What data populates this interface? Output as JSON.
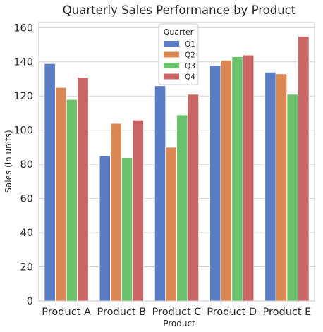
{
  "chart_data": {
    "type": "bar",
    "title": "Quarterly Sales Performance by Product",
    "xlabel": "Product",
    "ylabel": "Sales (in units)",
    "categories": [
      "Product A",
      "Product B",
      "Product C",
      "Product D",
      "Product E"
    ],
    "series": [
      {
        "name": "Q1",
        "color": "#5a7dc6",
        "values": [
          139,
          85,
          126,
          138,
          134
        ]
      },
      {
        "name": "Q2",
        "color": "#dc8854",
        "values": [
          125,
          104,
          90,
          141,
          133
        ]
      },
      {
        "name": "Q3",
        "color": "#6cc16c",
        "values": [
          118,
          84,
          109,
          143,
          121
        ]
      },
      {
        "name": "Q4",
        "color": "#c96565",
        "values": [
          131,
          106,
          121,
          144,
          155
        ]
      }
    ],
    "ylim": [
      0,
      163
    ],
    "yticks": [
      0,
      20,
      40,
      60,
      80,
      100,
      120,
      140,
      160
    ],
    "grid": true,
    "legend": {
      "title": "Quarter",
      "placement": "top-center"
    }
  }
}
